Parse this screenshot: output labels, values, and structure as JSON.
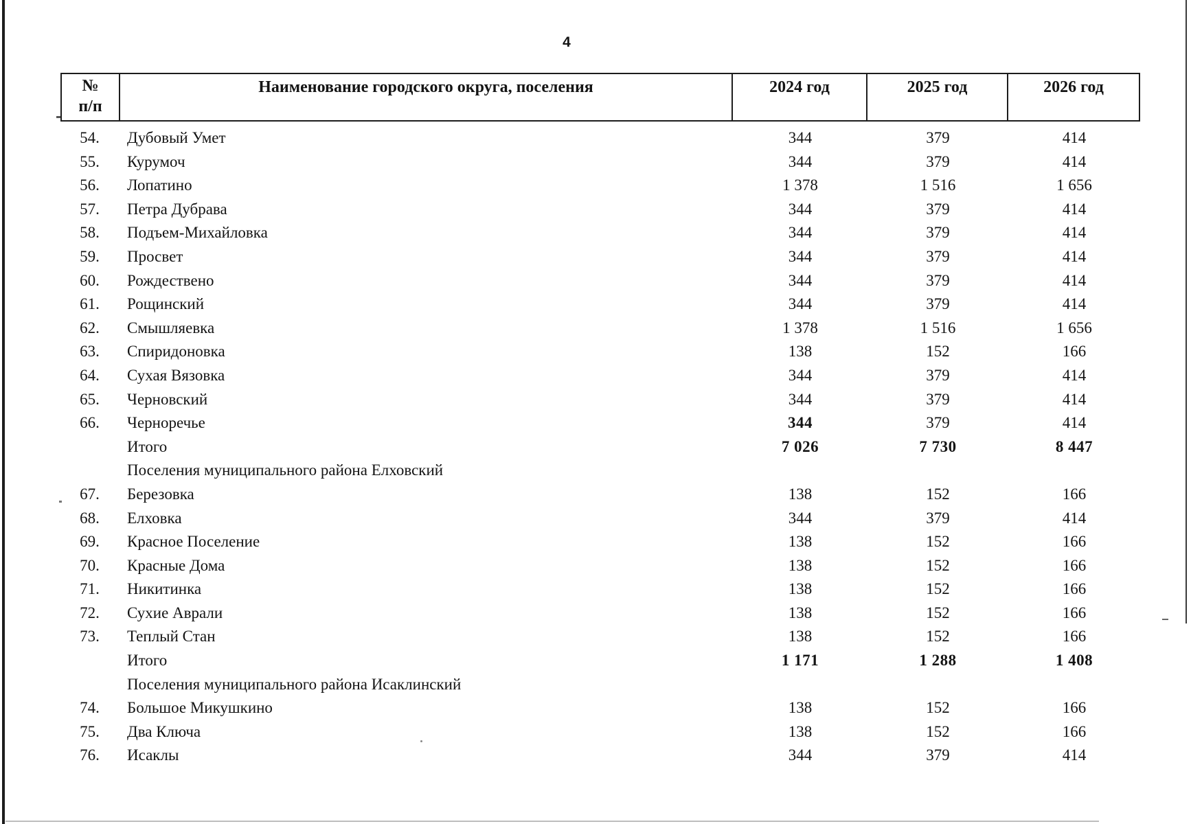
{
  "page": {
    "number": "4"
  },
  "table": {
    "header": {
      "num_line1": "№",
      "num_line2": "п/п",
      "name": "Наименование городского округа, поселения",
      "year1": "2024 год",
      "year2": "2025 год",
      "year3": "2026 год"
    },
    "rows": [
      {
        "num": "54.",
        "name": "Дубовый Умет",
        "v2024": "344",
        "v2025": "379",
        "v2026": "414",
        "style": "normal"
      },
      {
        "num": "55.",
        "name": "Курумоч",
        "v2024": "344",
        "v2025": "379",
        "v2026": "414",
        "style": "normal"
      },
      {
        "num": "56.",
        "name": "Лопатино",
        "v2024": "1 378",
        "v2025": "1 516",
        "v2026": "1 656",
        "style": "normal"
      },
      {
        "num": "57.",
        "name": "Петра Дубрава",
        "v2024": "344",
        "v2025": "379",
        "v2026": "414",
        "style": "normal"
      },
      {
        "num": "58.",
        "name": "Подъем-Михайловка",
        "v2024": "344",
        "v2025": "379",
        "v2026": "414",
        "style": "normal"
      },
      {
        "num": "59.",
        "name": "Просвет",
        "v2024": "344",
        "v2025": "379",
        "v2026": "414",
        "style": "normal"
      },
      {
        "num": "60.",
        "name": "Рождествено",
        "v2024": "344",
        "v2025": "379",
        "v2026": "414",
        "style": "normal"
      },
      {
        "num": "61.",
        "name": "Рощинский",
        "v2024": "344",
        "v2025": "379",
        "v2026": "414",
        "style": "normal"
      },
      {
        "num": "62.",
        "name": "Смышляевка",
        "v2024": "1 378",
        "v2025": "1 516",
        "v2026": "1 656",
        "style": "normal"
      },
      {
        "num": "63.",
        "name": "Спиридоновка",
        "v2024": "138",
        "v2025": "152",
        "v2026": "166",
        "style": "normal"
      },
      {
        "num": "64.",
        "name": "Сухая Вязовка",
        "v2024": "344",
        "v2025": "379",
        "v2026": "414",
        "style": "normal"
      },
      {
        "num": "65.",
        "name": "Черновский",
        "v2024": "344",
        "v2025": "379",
        "v2026": "414",
        "style": "normal"
      },
      {
        "num": "66.",
        "name": "Черноречье",
        "v2024": "344",
        "v2025": "379",
        "v2026": "414",
        "style": "boldv1"
      },
      {
        "num": "",
        "name": "Итого",
        "v2024": "7 026",
        "v2025": "7 730",
        "v2026": "8 447",
        "style": "total"
      },
      {
        "num": "",
        "name": "Поселения муниципального района Елховский",
        "v2024": "",
        "v2025": "",
        "v2026": "",
        "style": "section"
      },
      {
        "num": "67.",
        "name": "Березовка",
        "v2024": "138",
        "v2025": "152",
        "v2026": "166",
        "style": "normal"
      },
      {
        "num": "68.",
        "name": "Елховка",
        "v2024": "344",
        "v2025": "379",
        "v2026": "414",
        "style": "normal"
      },
      {
        "num": "69.",
        "name": "Красное Поселение",
        "v2024": "138",
        "v2025": "152",
        "v2026": "166",
        "style": "normal"
      },
      {
        "num": "70.",
        "name": "Красные Дома",
        "v2024": "138",
        "v2025": "152",
        "v2026": "166",
        "style": "normal"
      },
      {
        "num": "71.",
        "name": "Никитинка",
        "v2024": "138",
        "v2025": "152",
        "v2026": "166",
        "style": "normal"
      },
      {
        "num": "72.",
        "name": "Сухие Аврали",
        "v2024": "138",
        "v2025": "152",
        "v2026": "166",
        "style": "normal"
      },
      {
        "num": "73.",
        "name": "Теплый Стан",
        "v2024": "138",
        "v2025": "152",
        "v2026": "166",
        "style": "normal"
      },
      {
        "num": "",
        "name": "Итого",
        "v2024": "1 171",
        "v2025": "1 288",
        "v2026": "1 408",
        "style": "total"
      },
      {
        "num": "",
        "name": "Поселения муниципального района Исаклинский",
        "v2024": "",
        "v2025": "",
        "v2026": "",
        "style": "section"
      },
      {
        "num": "74.",
        "name": "Большое Микушкино",
        "v2024": "138",
        "v2025": "152",
        "v2026": "166",
        "style": "normal"
      },
      {
        "num": "75.",
        "name": "Два Ключа",
        "v2024": "138",
        "v2025": "152",
        "v2026": "166",
        "style": "normal"
      },
      {
        "num": "76.",
        "name": "Исаклы",
        "v2024": "344",
        "v2025": "379",
        "v2026": "414",
        "style": "normal"
      }
    ]
  },
  "colors": {
    "ink": "#141414",
    "border": "#1c1c1c",
    "scan_line": "#3a3a3a",
    "faint_line": "#bdbdbd"
  }
}
